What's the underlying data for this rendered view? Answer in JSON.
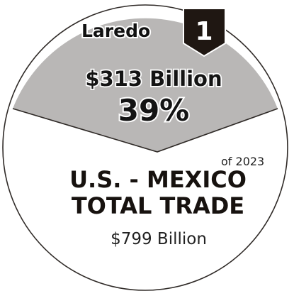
{
  "graphic": {
    "city": "Laredo",
    "rank": "1",
    "amount": "$313 Billion",
    "percent": "39%",
    "share_fraction": 0.39,
    "period": "of 2023",
    "title_line1": "U.S. - MEXICO",
    "title_line2": "TOTAL TRADE",
    "total": "$799 Billion"
  },
  "colors": {
    "wedge": "#b9b7b6",
    "outline": "#2f2a27",
    "badge": "#1f1712",
    "text_dark": "#141414",
    "text_medium": "#222222",
    "background": "#ffffff"
  },
  "icons": {
    "badge": "chevron-shield-badge-icon"
  }
}
